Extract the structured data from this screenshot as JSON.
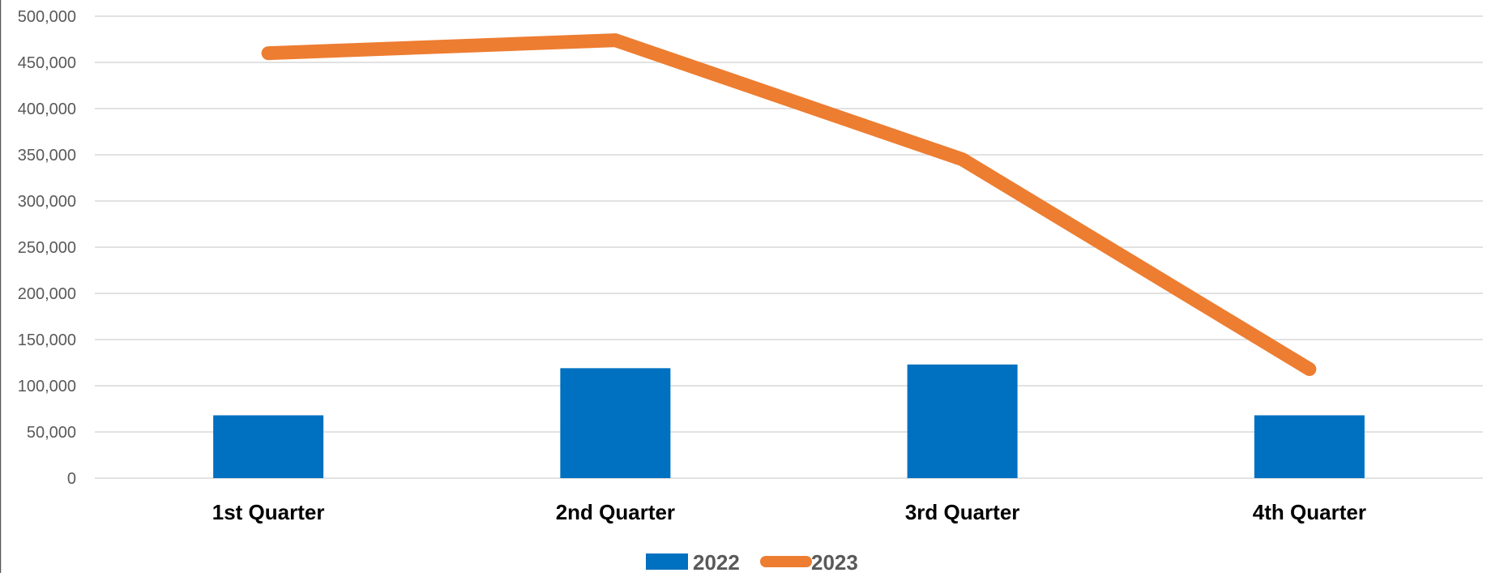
{
  "chart_data": {
    "type": "bar",
    "categories": [
      "1st Quarter",
      "2nd Quarter",
      "3rd Quarter",
      "4th Quarter"
    ],
    "series": [
      {
        "name": "2022",
        "type": "bar",
        "values": [
          68000,
          119000,
          123000,
          68000
        ],
        "color": "#0070C0"
      },
      {
        "name": "2023",
        "type": "line",
        "values": [
          460000,
          474000,
          345000,
          118000
        ],
        "color": "#ED7D31"
      }
    ],
    "y_ticks": [
      "0",
      "50,000",
      "100,000",
      "150,000",
      "200,000",
      "250,000",
      "300,000",
      "350,000",
      "400,000",
      "450,000",
      "500,000"
    ],
    "ylim": [
      0,
      500000
    ],
    "grid": true,
    "legend": {
      "position": "bottom",
      "entries": [
        "2022",
        "2023"
      ]
    }
  }
}
